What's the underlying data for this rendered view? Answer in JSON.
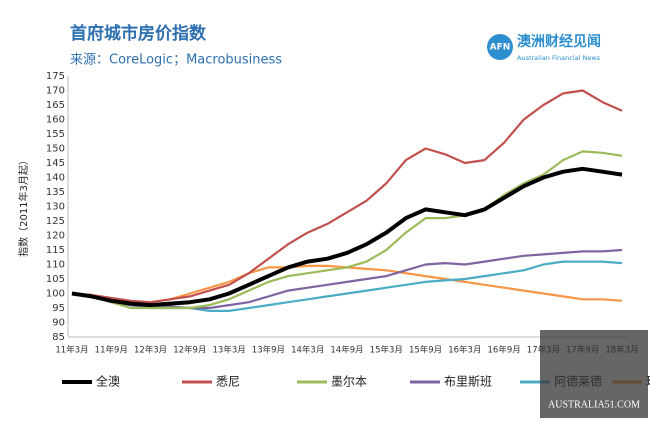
{
  "chart_data": {
    "type": "line",
    "title": "首府城市房价指数",
    "subtitle": "来源：CoreLogic；Macrobusiness",
    "logo": {
      "mark": "AFN",
      "name": "澳洲财经见闻",
      "english": "Australian Financial News"
    },
    "watermark": "AUSTRALIA51.COM",
    "y_label": "指数（2011年3月起）",
    "categories": [
      "11年3月",
      null,
      "11年9月",
      null,
      "12年3月",
      null,
      "12年9月",
      null,
      "13年3月",
      null,
      "13年9月",
      null,
      "14年3月",
      null,
      "14年9月",
      null,
      "15年3月",
      null,
      "15年9月",
      null,
      "16年3月",
      null,
      "16年9月",
      null,
      "17年3月",
      null,
      "17年9月",
      null,
      "18年3月"
    ],
    "ylim": [
      85,
      175
    ],
    "yticks": [
      85,
      90,
      95,
      100,
      105,
      110,
      115,
      120,
      125,
      130,
      135,
      140,
      145,
      150,
      155,
      160,
      165,
      170,
      175
    ],
    "grid": false,
    "legend": "bottom",
    "series": [
      {
        "name": "全澳",
        "color": "#000000",
        "values": [
          100,
          99,
          97.5,
          96.5,
          96,
          96.5,
          97,
          98,
          100,
          103,
          106,
          109,
          111,
          112,
          114,
          117,
          121,
          126,
          129,
          128,
          127,
          129,
          133,
          137,
          140,
          142,
          143,
          142,
          141
        ]
      },
      {
        "name": "悉尼",
        "color": "#c0504d",
        "values": [
          100,
          99.5,
          98.5,
          97.5,
          97,
          98,
          99,
          101,
          103,
          107,
          112,
          117,
          121,
          124,
          128,
          132,
          138,
          146,
          150,
          148,
          145,
          146,
          152,
          160,
          165,
          169,
          170,
          166,
          163
        ]
      },
      {
        "name": "墨尔本",
        "color": "#9bbb59",
        "values": [
          100,
          99,
          97,
          95,
          95,
          95,
          95,
          96,
          98,
          101,
          104,
          106,
          107,
          108,
          109,
          111,
          115,
          121,
          126,
          126,
          127,
          129,
          134,
          138,
          141,
          146,
          149,
          148.5,
          147.5
        ]
      },
      {
        "name": "布里斯班",
        "color": "#8064a2",
        "values": [
          100,
          99,
          97,
          96,
          95.5,
          95.5,
          95,
          95,
          96,
          97,
          99,
          101,
          102,
          103,
          104,
          105,
          106,
          108,
          110,
          110.5,
          110,
          111,
          112,
          113,
          113.5,
          114,
          114.5,
          114.5,
          115
        ]
      },
      {
        "name": "阿德莱德",
        "color": "#4bacc6",
        "values": [
          100,
          99,
          97.5,
          96,
          95,
          95,
          95,
          94,
          94,
          95,
          96,
          97,
          98,
          99,
          100,
          101,
          102,
          103,
          104,
          104.5,
          105,
          106,
          107,
          108,
          110,
          111,
          111,
          111,
          110.5
        ]
      },
      {
        "name": "珀斯",
        "color": "#f79646",
        "values": [
          100,
          99,
          98,
          97,
          97,
          98,
          100,
          102,
          104,
          107,
          109,
          109,
          109.5,
          109.5,
          109,
          108.5,
          108,
          107,
          106,
          105,
          104,
          103,
          102,
          101,
          100,
          99,
          98,
          98,
          97.5
        ]
      }
    ]
  }
}
